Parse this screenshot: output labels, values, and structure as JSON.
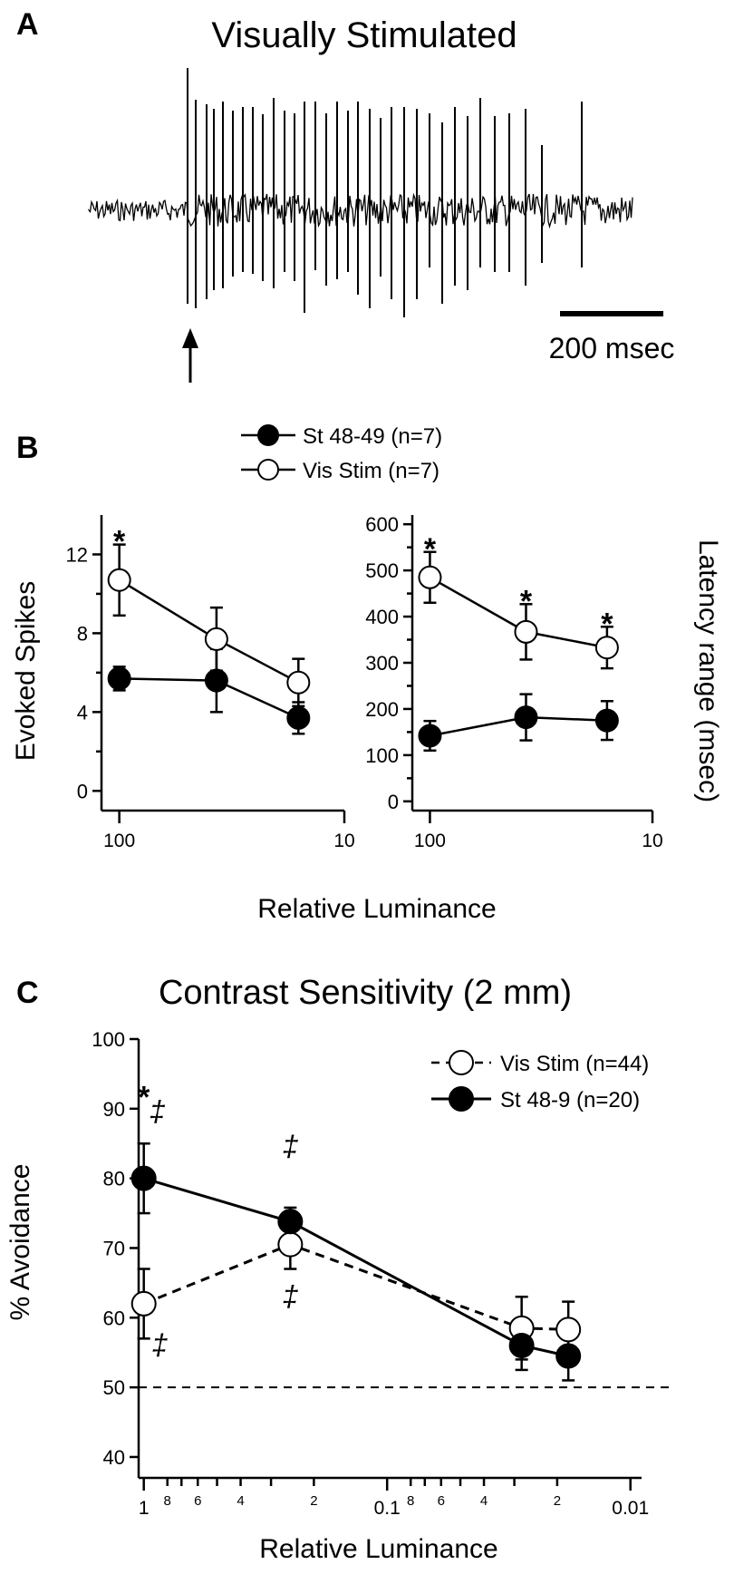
{
  "panels": {
    "a_letter": "A",
    "b_letter": "B",
    "c_letter": "C"
  },
  "panel_a": {
    "title": "Visually Stimulated",
    "scale_bar_label": "200 msec"
  },
  "chart_data": [
    {
      "id": "B-left",
      "type": "line",
      "x_scale": "log-reversed",
      "xlabel": "Relative Luminance",
      "ylabel": "Evoked Spikes",
      "xlim": [
        120,
        10
      ],
      "ylim": [
        -1,
        14
      ],
      "xtick_labels": [
        "100",
        "10"
      ],
      "xticks": [
        100,
        10
      ],
      "yticks": [
        0,
        4,
        8,
        12
      ],
      "x": [
        100,
        37,
        16
      ],
      "series": [
        {
          "name": "St 48-49 (n=7)",
          "marker": "filled",
          "values": [
            5.7,
            5.6,
            3.7
          ],
          "err_up": [
            0.6,
            1.6,
            0.8
          ],
          "err_dn": [
            0.6,
            1.6,
            0.8
          ]
        },
        {
          "name": "Vis Stim (n=7)",
          "marker": "open",
          "values": [
            10.7,
            7.7,
            5.5
          ],
          "err_up": [
            1.8,
            1.6,
            1.2
          ],
          "err_dn": [
            1.8,
            1.6,
            1.2
          ]
        }
      ],
      "annotations": [
        {
          "text": "*",
          "x": 100
        }
      ]
    },
    {
      "id": "B-right",
      "type": "line",
      "x_scale": "log-reversed",
      "xlabel": "Relative Luminance",
      "ylabel": "Latency range (msec)",
      "xlim": [
        120,
        10
      ],
      "ylim": [
        -20,
        620
      ],
      "xtick_labels": [
        "100",
        "10"
      ],
      "xticks": [
        100,
        10
      ],
      "yticks": [
        0,
        100,
        200,
        300,
        400,
        500,
        600
      ],
      "x": [
        100,
        37,
        16
      ],
      "series": [
        {
          "name": "St 48-49 (n=7)",
          "marker": "filled",
          "values": [
            142,
            182,
            175
          ],
          "err_up": [
            32,
            50,
            42
          ],
          "err_dn": [
            32,
            50,
            42
          ]
        },
        {
          "name": "Vis Stim (n=7)",
          "marker": "open",
          "values": [
            485,
            367,
            333
          ],
          "err_up": [
            55,
            60,
            45
          ],
          "err_dn": [
            55,
            60,
            45
          ]
        }
      ],
      "annotations": [
        {
          "text": "*",
          "x": 100
        },
        {
          "text": "*",
          "x": 37
        },
        {
          "text": "*",
          "x": 16
        }
      ]
    },
    {
      "id": "C",
      "type": "line",
      "title": "Contrast Sensitivity (2 mm)",
      "x_scale": "log-reversed",
      "xlabel": "Relative Luminance",
      "ylabel": "% Avoidance",
      "xlim": [
        1.05,
        0.009
      ],
      "ylim": [
        37,
        100
      ],
      "xticks": [
        1,
        0.1,
        0.01
      ],
      "xtick_labels": [
        "1",
        "0.1",
        "0.01"
      ],
      "minor_ticks": [
        0.8,
        0.7,
        0.6,
        0.5,
        0.4,
        0.3,
        0.2,
        0.08,
        0.07,
        0.06,
        0.05,
        0.04,
        0.03,
        0.02
      ],
      "minor_labels": [
        {
          "v": 0.8,
          "t": "8"
        },
        {
          "v": 0.6,
          "t": "6"
        },
        {
          "v": 0.4,
          "t": "4"
        },
        {
          "v": 0.2,
          "t": "2"
        },
        {
          "v": 0.08,
          "t": "8"
        },
        {
          "v": 0.06,
          "t": "6"
        },
        {
          "v": 0.04,
          "t": "4"
        },
        {
          "v": 0.02,
          "t": "2"
        }
      ],
      "yticks": [
        40,
        50,
        60,
        70,
        80,
        90,
        100
      ],
      "chance_level": 50,
      "x": [
        1,
        0.25,
        0.028,
        0.018
      ],
      "series": [
        {
          "name": "Vis Stim (n=44)",
          "marker": "open",
          "line": "dashed",
          "values": [
            62,
            70.5,
            58.5,
            58.3
          ],
          "err_up": [
            5,
            3.5,
            4.5,
            4
          ],
          "err_dn": [
            5,
            3.5,
            4.5,
            4
          ]
        },
        {
          "name": "St 48-9 (n=20)",
          "marker": "filled",
          "line": "solid",
          "values": [
            80,
            73.8,
            56,
            54.5
          ],
          "err_up": [
            5,
            2,
            3.5,
            3.5
          ],
          "err_dn": [
            5,
            2,
            3.5,
            3.5
          ]
        }
      ],
      "annotations": [
        {
          "text": "*",
          "x": 1,
          "y": 92.5
        },
        {
          "text": "‡",
          "x": 0.88,
          "y": 89.5
        },
        {
          "text": "‡",
          "x": 0.86,
          "y": 56
        },
        {
          "text": "‡",
          "x": 0.25,
          "y": 84.5
        },
        {
          "text": "‡",
          "x": 0.25,
          "y": 63
        }
      ]
    }
  ]
}
